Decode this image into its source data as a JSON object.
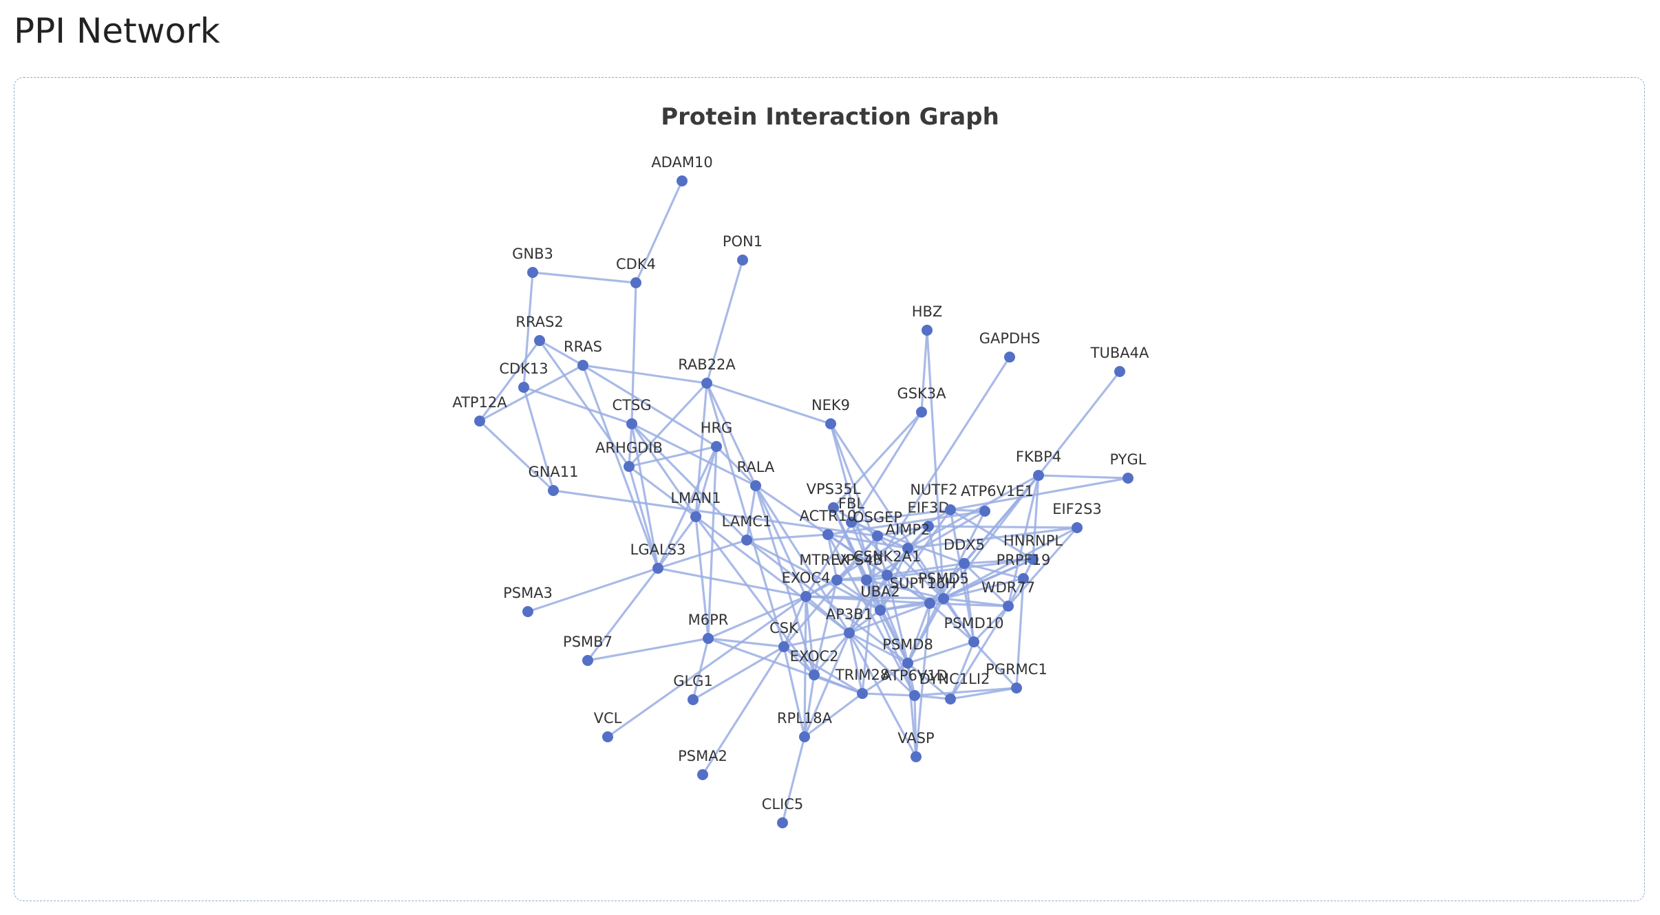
{
  "page": {
    "title": "PPI Network"
  },
  "graph": {
    "title": "Protein Interaction Graph",
    "colors": {
      "node": "#5470c6",
      "edge": "#9aaee3"
    },
    "nodes": [
      "ADAM10",
      "PON1",
      "GNB3",
      "CDK4",
      "RRAS2",
      "RRAS",
      "CDK13",
      "ATP12A",
      "RAB22A",
      "CTSG",
      "HBZ",
      "GAPDHS",
      "TUBA4A",
      "NEK9",
      "GSK3A",
      "HRG",
      "ARHGDIB",
      "GNA11",
      "RALA",
      "FBL",
      "EIF3D",
      "FKBP4",
      "PYGL",
      "VPS35L",
      "NUTF2",
      "ATP6V1E1",
      "EIF2S3",
      "LMAN1",
      "OSGEP",
      "ACTR10",
      "AIMP2",
      "LAMC1",
      "HNRNPL",
      "LGALS3",
      "CSNK2A1",
      "DDX5",
      "MTREX",
      "VPS4B",
      "PRPF19",
      "EXOC4",
      "PSMD5",
      "SUPT16H",
      "UBA2",
      "WDR77",
      "PSMA3",
      "AP3B1",
      "M6PR",
      "PSMD10",
      "CSK",
      "PSMB7",
      "PSMD8",
      "EXOC2",
      "TRIM28",
      "ATP6V1D",
      "DYNC1LI2",
      "PGRMC1",
      "GLG1",
      "VCL",
      "RPL18A",
      "VASP",
      "PSMA2",
      "CLIC5"
    ],
    "edges": [
      [
        "ADAM10",
        "CDK4"
      ],
      [
        "GNB3",
        "CDK4"
      ],
      [
        "GNB3",
        "CDK13"
      ],
      [
        "CDK4",
        "CTSG"
      ],
      [
        "PON1",
        "RAB22A"
      ],
      [
        "RRAS2",
        "RRAS"
      ],
      [
        "RRAS2",
        "ATP12A"
      ],
      [
        "RRAS2",
        "ARHGDIB"
      ],
      [
        "RRAS",
        "RAB22A"
      ],
      [
        "RRAS",
        "HRG"
      ],
      [
        "RRAS",
        "ATP12A"
      ],
      [
        "RRAS",
        "LGALS3"
      ],
      [
        "CDK13",
        "GNA11"
      ],
      [
        "CDK13",
        "CTSG"
      ],
      [
        "ATP12A",
        "GNA11"
      ],
      [
        "RAB22A",
        "NEK9"
      ],
      [
        "RAB22A",
        "ARHGDIB"
      ],
      [
        "RAB22A",
        "LMAN1"
      ],
      [
        "RAB22A",
        "RALA"
      ],
      [
        "CTSG",
        "ARHGDIB"
      ],
      [
        "CTSG",
        "LMAN1"
      ],
      [
        "CTSG",
        "LGALS3"
      ],
      [
        "CTSG",
        "LAMC1"
      ],
      [
        "CTSG",
        "RALA"
      ],
      [
        "HRG",
        "ARHGDIB"
      ],
      [
        "HRG",
        "LMAN1"
      ],
      [
        "HRG",
        "RALA"
      ],
      [
        "HRG",
        "M6PR"
      ],
      [
        "HRG",
        "LGALS3"
      ],
      [
        "ARHGDIB",
        "LMAN1"
      ],
      [
        "ARHGDIB",
        "LGALS3"
      ],
      [
        "GNA11",
        "OSGEP"
      ],
      [
        "RALA",
        "LAMC1"
      ],
      [
        "RALA",
        "EXOC4"
      ],
      [
        "RALA",
        "EXOC2"
      ],
      [
        "RALA",
        "CSNK2A1"
      ],
      [
        "LMAN1",
        "LGALS3"
      ],
      [
        "LMAN1",
        "M6PR"
      ],
      [
        "LMAN1",
        "EXOC2"
      ],
      [
        "LMAN1",
        "AP3B1"
      ],
      [
        "LGALS3",
        "PSMA3"
      ],
      [
        "LGALS3",
        "PSMB7"
      ],
      [
        "LGALS3",
        "EXOC4"
      ],
      [
        "LGALS3",
        "LAMC1"
      ],
      [
        "M6PR",
        "PSMB7"
      ],
      [
        "M6PR",
        "GLG1"
      ],
      [
        "M6PR",
        "EXOC4"
      ],
      [
        "M6PR",
        "CSK"
      ],
      [
        "M6PR",
        "TRIM28"
      ],
      [
        "VCL",
        "EXOC4"
      ],
      [
        "PSMA2",
        "CSK"
      ],
      [
        "CLIC5",
        "RPL18A"
      ],
      [
        "RPL18A",
        "CSK"
      ],
      [
        "RPL18A",
        "EXOC2"
      ],
      [
        "RPL18A",
        "TRIM28"
      ],
      [
        "RPL18A",
        "EXOC4"
      ],
      [
        "RPL18A",
        "AP3B1"
      ],
      [
        "HBZ",
        "GSK3A"
      ],
      [
        "HBZ",
        "PSMD5"
      ],
      [
        "GAPDHS",
        "VPS4B"
      ],
      [
        "TUBA4A",
        "FKBP4"
      ],
      [
        "NEK9",
        "CSNK2A1"
      ],
      [
        "NEK9",
        "UBA2"
      ],
      [
        "NEK9",
        "PSMD10"
      ],
      [
        "GSK3A",
        "EXOC4"
      ],
      [
        "GSK3A",
        "VPS35L"
      ],
      [
        "FBL",
        "DDX5"
      ],
      [
        "FBL",
        "SUPT16H"
      ],
      [
        "FBL",
        "PSMD8"
      ],
      [
        "FBL",
        "NUTF2"
      ],
      [
        "EIF3D",
        "EIF2S3"
      ],
      [
        "EIF3D",
        "CSNK2A1"
      ],
      [
        "EIF3D",
        "OSGEP"
      ],
      [
        "EIF3D",
        "AIMP2"
      ],
      [
        "EIF3D",
        "PSMD5"
      ],
      [
        "FKBP4",
        "PYGL"
      ],
      [
        "FKBP4",
        "HNRNPL"
      ],
      [
        "FKBP4",
        "PSMD5"
      ],
      [
        "FKBP4",
        "SUPT16H"
      ],
      [
        "FKBP4",
        "DDX5"
      ],
      [
        "FKBP4",
        "AIMP2"
      ],
      [
        "FKBP4",
        "WDR77"
      ],
      [
        "PYGL",
        "NUTF2"
      ],
      [
        "VPS35L",
        "VPS4B"
      ],
      [
        "VPS35L",
        "OSGEP"
      ],
      [
        "VPS35L",
        "PSMD8"
      ],
      [
        "VPS35L",
        "ATP6V1D"
      ],
      [
        "NUTF2",
        "ATP6V1E1"
      ],
      [
        "NUTF2",
        "UBA2"
      ],
      [
        "NUTF2",
        "EXOC4"
      ],
      [
        "NUTF2",
        "PSMD10"
      ],
      [
        "NUTF2",
        "HNRNPL"
      ],
      [
        "ATP6V1E1",
        "PSMD8"
      ],
      [
        "ATP6V1E1",
        "ACTR10"
      ],
      [
        "ATP6V1E1",
        "VPS4B"
      ],
      [
        "EIF2S3",
        "WDR77"
      ],
      [
        "EIF2S3",
        "PSMD5"
      ],
      [
        "EIF2S3",
        "AIMP2"
      ],
      [
        "OSGEP",
        "AIMP2"
      ],
      [
        "OSGEP",
        "MTREX"
      ],
      [
        "OSGEP",
        "PSMD5"
      ],
      [
        "OSGEP",
        "CSK"
      ],
      [
        "OSGEP",
        "TRIM28"
      ],
      [
        "ACTR10",
        "AIMP2"
      ],
      [
        "ACTR10",
        "MTREX"
      ],
      [
        "ACTR10",
        "CSNK2A1"
      ],
      [
        "ACTR10",
        "SUPT16H"
      ],
      [
        "ACTR10",
        "ATP6V1D"
      ],
      [
        "AIMP2",
        "CSNK2A1"
      ],
      [
        "AIMP2",
        "PSMD5"
      ],
      [
        "AIMP2",
        "UBA2"
      ],
      [
        "AIMP2",
        "AP3B1"
      ],
      [
        "LAMC1",
        "ACTR10"
      ],
      [
        "LAMC1",
        "UBA2"
      ],
      [
        "LAMC1",
        "PSMD8"
      ],
      [
        "HNRNPL",
        "DDX5"
      ],
      [
        "HNRNPL",
        "PSMD5"
      ],
      [
        "HNRNPL",
        "PRPF19"
      ],
      [
        "HNRNPL",
        "SUPT16H"
      ],
      [
        "HNRNPL",
        "VPS4B"
      ],
      [
        "CSNK2A1",
        "DDX5"
      ],
      [
        "CSNK2A1",
        "SUPT16H"
      ],
      [
        "CSNK2A1",
        "UBA2"
      ],
      [
        "CSNK2A1",
        "AP3B1"
      ],
      [
        "CSNK2A1",
        "PSMD8"
      ],
      [
        "CSNK2A1",
        "MTREX"
      ],
      [
        "DDX5",
        "SUPT16H"
      ],
      [
        "DDX5",
        "WDR77"
      ],
      [
        "DDX5",
        "PRPF19"
      ],
      [
        "DDX5",
        "PSMD10"
      ],
      [
        "MTREX",
        "VPS4B"
      ],
      [
        "MTREX",
        "EXOC4"
      ],
      [
        "MTREX",
        "UBA2"
      ],
      [
        "MTREX",
        "EXOC2"
      ],
      [
        "VPS4B",
        "PSMD5"
      ],
      [
        "VPS4B",
        "UBA2"
      ],
      [
        "VPS4B",
        "AP3B1"
      ],
      [
        "PRPF19",
        "PGRMC1"
      ],
      [
        "PRPF19",
        "WDR77"
      ],
      [
        "PRPF19",
        "PSMD5"
      ],
      [
        "EXOC4",
        "EXOC2"
      ],
      [
        "EXOC4",
        "AP3B1"
      ],
      [
        "EXOC4",
        "SUPT16H"
      ],
      [
        "EXOC4",
        "CSK"
      ],
      [
        "EXOC4",
        "PSMD5"
      ],
      [
        "PSMD5",
        "SUPT16H"
      ],
      [
        "PSMD5",
        "PSMD10"
      ],
      [
        "PSMD5",
        "PSMD8"
      ],
      [
        "PSMD5",
        "UBA2"
      ],
      [
        "PSMD5",
        "WDR77"
      ],
      [
        "SUPT16H",
        "UBA2"
      ],
      [
        "SUPT16H",
        "AP3B1"
      ],
      [
        "SUPT16H",
        "WDR77"
      ],
      [
        "SUPT16H",
        "PSMD10"
      ],
      [
        "SUPT16H",
        "PSMD8"
      ],
      [
        "SUPT16H",
        "VASP"
      ],
      [
        "UBA2",
        "AP3B1"
      ],
      [
        "UBA2",
        "PSMD8"
      ],
      [
        "WDR77",
        "PSMD10"
      ],
      [
        "WDR77",
        "DYNC1LI2"
      ],
      [
        "AP3B1",
        "CSK"
      ],
      [
        "AP3B1",
        "TRIM28"
      ],
      [
        "AP3B1",
        "PSMD8"
      ],
      [
        "AP3B1",
        "ATP6V1D"
      ],
      [
        "AP3B1",
        "EXOC2"
      ],
      [
        "AP3B1",
        "VASP"
      ],
      [
        "PSMD10",
        "PSMD8"
      ],
      [
        "PSMD10",
        "DYNC1LI2"
      ],
      [
        "PSMD10",
        "PGRMC1"
      ],
      [
        "CSK",
        "EXOC2"
      ],
      [
        "CSK",
        "TRIM28"
      ],
      [
        "PSMD8",
        "ATP6V1D"
      ],
      [
        "PSMD8",
        "DYNC1LI2"
      ],
      [
        "PSMD8",
        "TRIM28"
      ],
      [
        "PSMD8",
        "VASP"
      ],
      [
        "EXOC2",
        "TRIM28"
      ],
      [
        "TRIM28",
        "ATP6V1D"
      ],
      [
        "ATP6V1D",
        "DYNC1LI2"
      ],
      [
        "ATP6V1D",
        "VASP"
      ],
      [
        "DYNC1LI2",
        "PGRMC1"
      ],
      [
        "ATP6V1D",
        "PGRMC1"
      ],
      [
        "GLG1",
        "CSK"
      ],
      [
        "RALA",
        "AP3B1"
      ],
      [
        "RAB22A",
        "CSK"
      ]
    ]
  }
}
